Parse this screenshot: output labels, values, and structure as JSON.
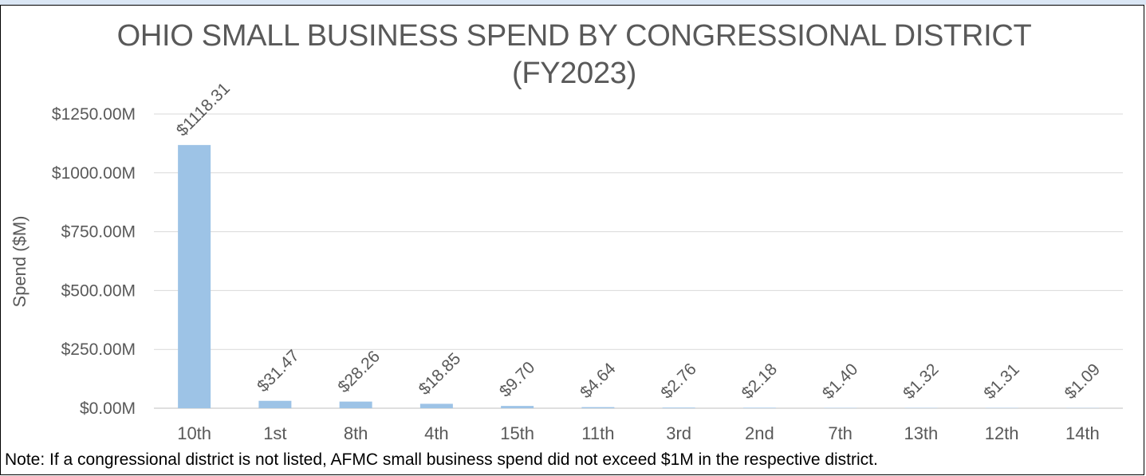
{
  "chart_data": {
    "type": "bar",
    "title": "OHIO SMALL BUSINESS SPEND BY CONGRESSIONAL DISTRICT (FY2023)",
    "xlabel": "",
    "ylabel": "Spend ($M)",
    "ylim": [
      0,
      1250
    ],
    "yticks": [
      0,
      250,
      500,
      750,
      1000,
      1250
    ],
    "ytick_labels": [
      "$0.00M",
      "$250.00M",
      "$500.00M",
      "$750.00M",
      "$1000.00M",
      "$1250.00M"
    ],
    "categories": [
      "10th",
      "1st",
      "8th",
      "4th",
      "15th",
      "11th",
      "3rd",
      "2nd",
      "7th",
      "13th",
      "12th",
      "14th"
    ],
    "values": [
      1118.31,
      31.47,
      28.26,
      18.85,
      9.7,
      4.64,
      2.76,
      2.18,
      1.4,
      1.32,
      1.31,
      1.09
    ],
    "data_labels": [
      "$1118.31",
      "$31.47",
      "$28.26",
      "$18.85",
      "$9.70",
      "$4.64",
      "$2.76",
      "$2.18",
      "$1.40",
      "$1.32",
      "$1.31",
      "$1.09"
    ],
    "grid": true,
    "legend": "none",
    "bar_color": "#9dc3e6",
    "grid_color": "#d9d9d9",
    "text_color": "#595959"
  },
  "note": "Note: If a congressional district is not listed, AFMC small business spend did not exceed $1M in the respective district."
}
